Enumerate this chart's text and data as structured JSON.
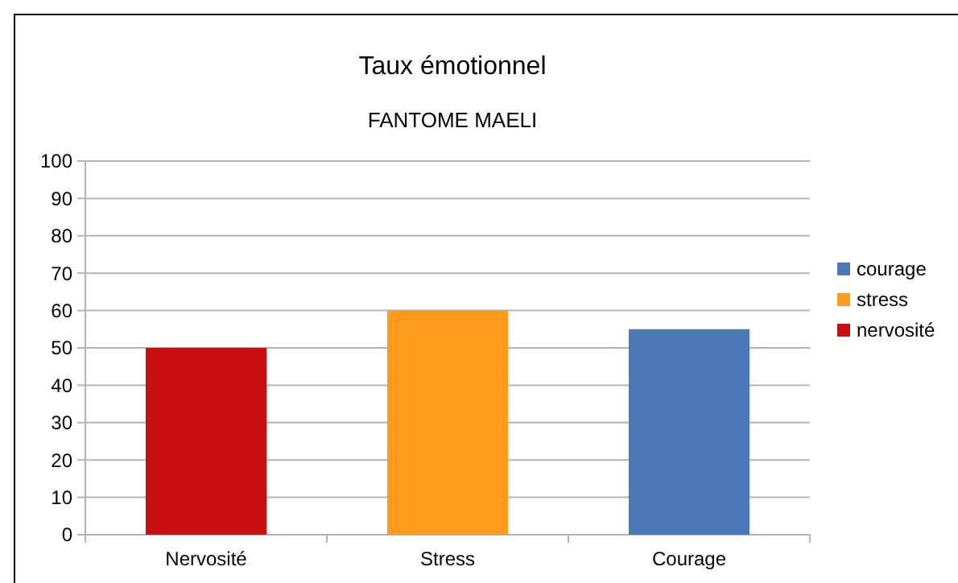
{
  "chart_data": {
    "type": "bar",
    "title": "Taux émotionnel",
    "subtitle": "FANTOME MAELI",
    "categories": [
      "Nervosité",
      "Stress",
      "Courage"
    ],
    "series": [
      {
        "name": "nervosité",
        "color": "#c81010",
        "values": [
          50,
          null,
          null
        ]
      },
      {
        "name": "stress",
        "color": "#ff9a1a",
        "values": [
          null,
          60,
          null
        ]
      },
      {
        "name": "courage",
        "color": "#4a78b8",
        "values": [
          null,
          null,
          55
        ]
      }
    ],
    "ylim": [
      0,
      100
    ],
    "yticks": [
      0,
      10,
      20,
      30,
      40,
      50,
      60,
      70,
      80,
      90,
      100
    ],
    "grid": "y",
    "legend": "right"
  }
}
